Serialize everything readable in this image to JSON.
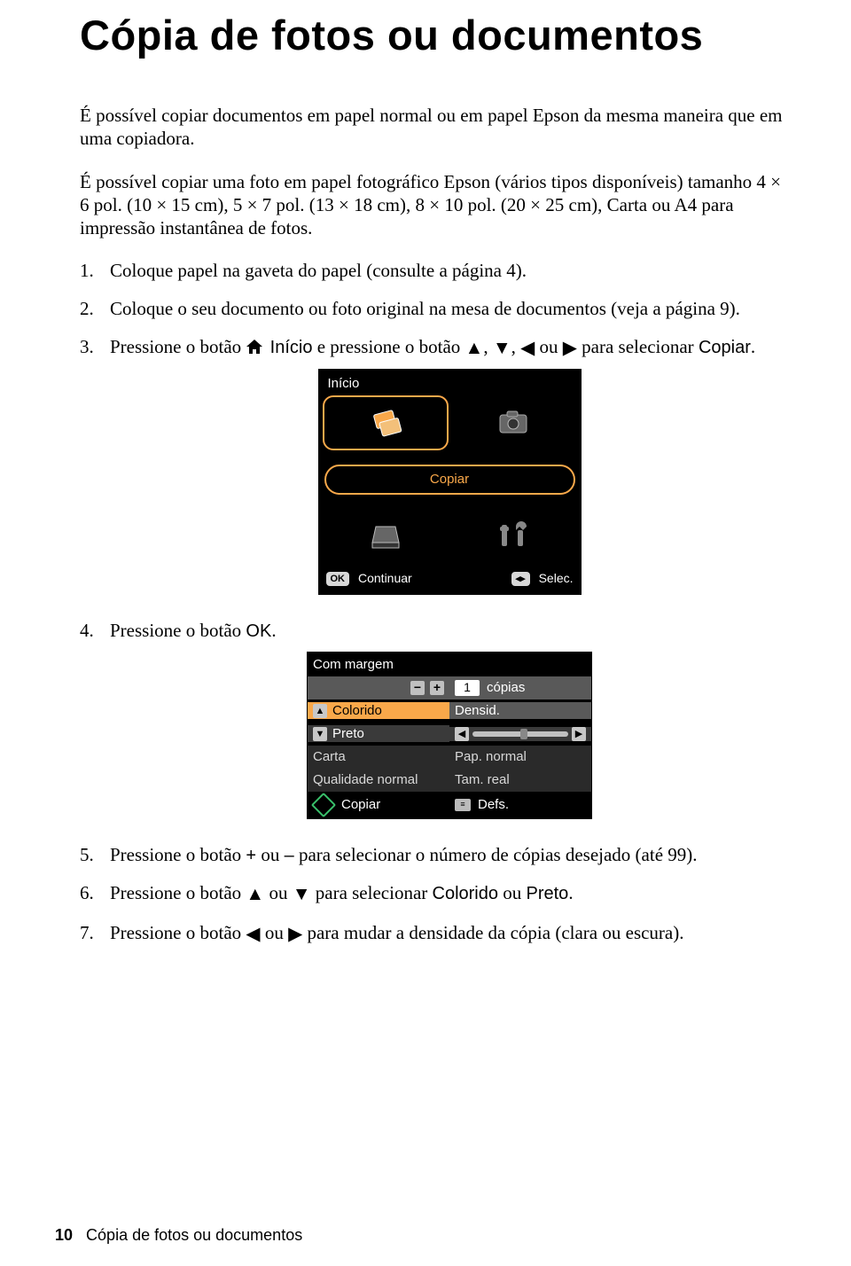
{
  "title": "Cópia de fotos ou documentos",
  "intro1": "É possível copiar documentos em papel normal ou em papel Epson da mesma maneira que em uma copiadora.",
  "intro2": "É possível copiar uma foto em papel fotográfico Epson (vários tipos disponíveis) tamanho 4 × 6 pol. (10 × 15 cm), 5 × 7 pol. (13 × 18 cm), 8 × 10 pol. (20 × 25 cm), Carta ou A4 para impressão instantânea de fotos.",
  "steps": {
    "s1": "Coloque papel na gaveta do papel (consulte a página 4).",
    "s2": "Coloque o seu documento ou foto original na mesa de documentos (veja a página 9).",
    "s3": {
      "before": "Pressione o botão",
      "inicio": "Início",
      "mid1": "e pressione o botão",
      "ou": "ou",
      "after": "para selecionar",
      "copiar": "Copiar"
    },
    "s4": {
      "before": "Pressione o botão",
      "ok": "OK"
    },
    "s5": {
      "before": "Pressione o botão",
      "plus": "+",
      "ou": "ou",
      "minus": "–",
      "after": "para selecionar o número de cópias desejado (até 99)."
    },
    "s6": {
      "before": "Pressione o botão",
      "ou": "ou",
      "mid": "para selecionar",
      "colorido": "Colorido",
      "ou2": "ou",
      "preto": "Preto"
    },
    "s7": {
      "before": "Pressione o botão",
      "ou": "ou",
      "after": "para mudar a densidade da cópia (clara ou escura)."
    }
  },
  "screen1": {
    "title": "Início",
    "pill": "Copiar",
    "ok": "OK",
    "continuar": "Continuar",
    "selec_key": "◂▸",
    "selec": "Selec.",
    "colors": {
      "bg": "#000000",
      "accent": "#f9a84a",
      "icon": "#c8c8c8"
    }
  },
  "screen2": {
    "title": "Com margem",
    "copias_val": "1",
    "copias_lbl": "cópias",
    "colorido": "Colorido",
    "densid": "Densid.",
    "preto": "Preto",
    "carta": "Carta",
    "pap": "Pap. normal",
    "qualidade": "Qualidade normal",
    "tam": "Tam. real",
    "copiar": "Copiar",
    "defs_key": "≡",
    "defs": "Defs.",
    "thumb_pct": 50
  },
  "arrows": {
    "up": "▲",
    "down": "▼",
    "left": "◀",
    "right": "▶"
  },
  "footer": {
    "page": "10",
    "label": "Cópia de fotos ou documentos"
  }
}
